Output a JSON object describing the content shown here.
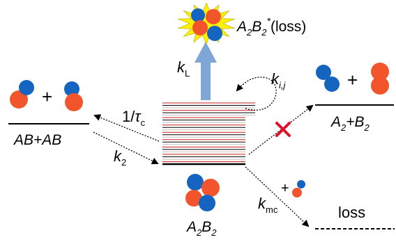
{
  "colors": {
    "atom_a": "#f2552c",
    "atom_b": "#1565c0",
    "burst_fill": "#ffef00",
    "loss_arrow": "#7ea6d6",
    "red_cross": "#e0102a",
    "red_level": "#c81e1e",
    "gray_level": "#bdbdbd",
    "black_level": "#000000"
  },
  "labels": {
    "left_state": "AB+AB",
    "plus_left": "+",
    "plus_right": "+",
    "plus_small": "+",
    "right_state_A": "A",
    "right_state_A_sub": "2",
    "right_state_plus": "+B",
    "right_state_B_sub": "2",
    "center_A": "A",
    "center_A_sub": "2",
    "center_B": "B",
    "center_B_sub": "2",
    "top_A": "A",
    "top_A_sub": "2",
    "top_B": "B",
    "top_B_sub": "2",
    "top_star": "*",
    "top_suffix": "(loss)",
    "kL": "k",
    "kL_sub": "L",
    "kij": "k",
    "kij_sub": "i,j",
    "tau_prefix": "1/",
    "tau": "τ",
    "tau_sub": "c",
    "k2": "k",
    "k2_sub": "2",
    "kmc": "k",
    "kmc_sub": "mc",
    "loss": "loss"
  },
  "icons": [
    "burst-icon",
    "molecule-icon",
    "complex-icon",
    "red-x-icon"
  ]
}
